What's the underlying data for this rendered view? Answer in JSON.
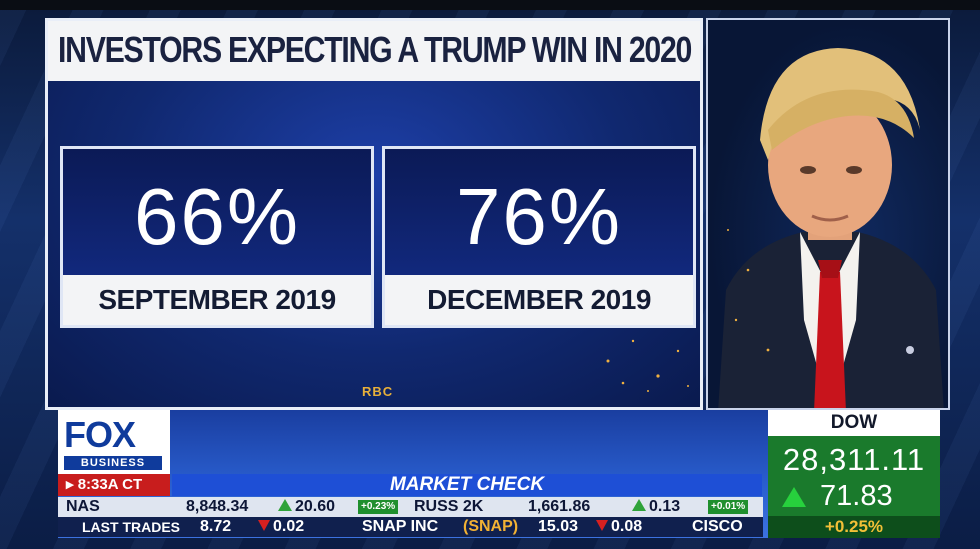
{
  "graphic": {
    "headline": "INVESTORS EXPECTING A TRUMP WIN IN 2020",
    "stats": [
      {
        "value": "66%",
        "label": "SEPTEMBER 2019"
      },
      {
        "value": "76%",
        "label": "DECEMBER 2019"
      }
    ],
    "source": "RBC"
  },
  "branding": {
    "logo_main": "FOX",
    "logo_sub": "BUSINESS",
    "time": "▸ 8:33A CT"
  },
  "segment": {
    "title": "MARKET CHECK"
  },
  "ticker": {
    "row1": {
      "nas_label": "NAS",
      "nas_value": "8,848.34",
      "nas_change": "20.60",
      "nas_pct": "+0.23%",
      "russ_label": "RUSS 2K",
      "russ_value": "1,661.86",
      "russ_change": "0.13",
      "russ_pct": "+0.01%"
    },
    "row2": {
      "label": "LAST TRADES",
      "t1_price": "8.72",
      "t1_change": "0.02",
      "t2_name": "SNAP INC",
      "t2_symbol": "(SNAP)",
      "t2_price": "15.03",
      "t2_change": "0.08",
      "t3_name": "CISCO"
    }
  },
  "dow": {
    "label": "DOW",
    "value": "28,311.11",
    "change": "71.83",
    "pct": "+0.25%"
  },
  "colors": {
    "headline_bg": "#f3f4f6",
    "stat_bg": "#142e8c",
    "dow_green": "#1a7a2c",
    "down_red": "#d62020",
    "up_green": "#2fa33a"
  }
}
